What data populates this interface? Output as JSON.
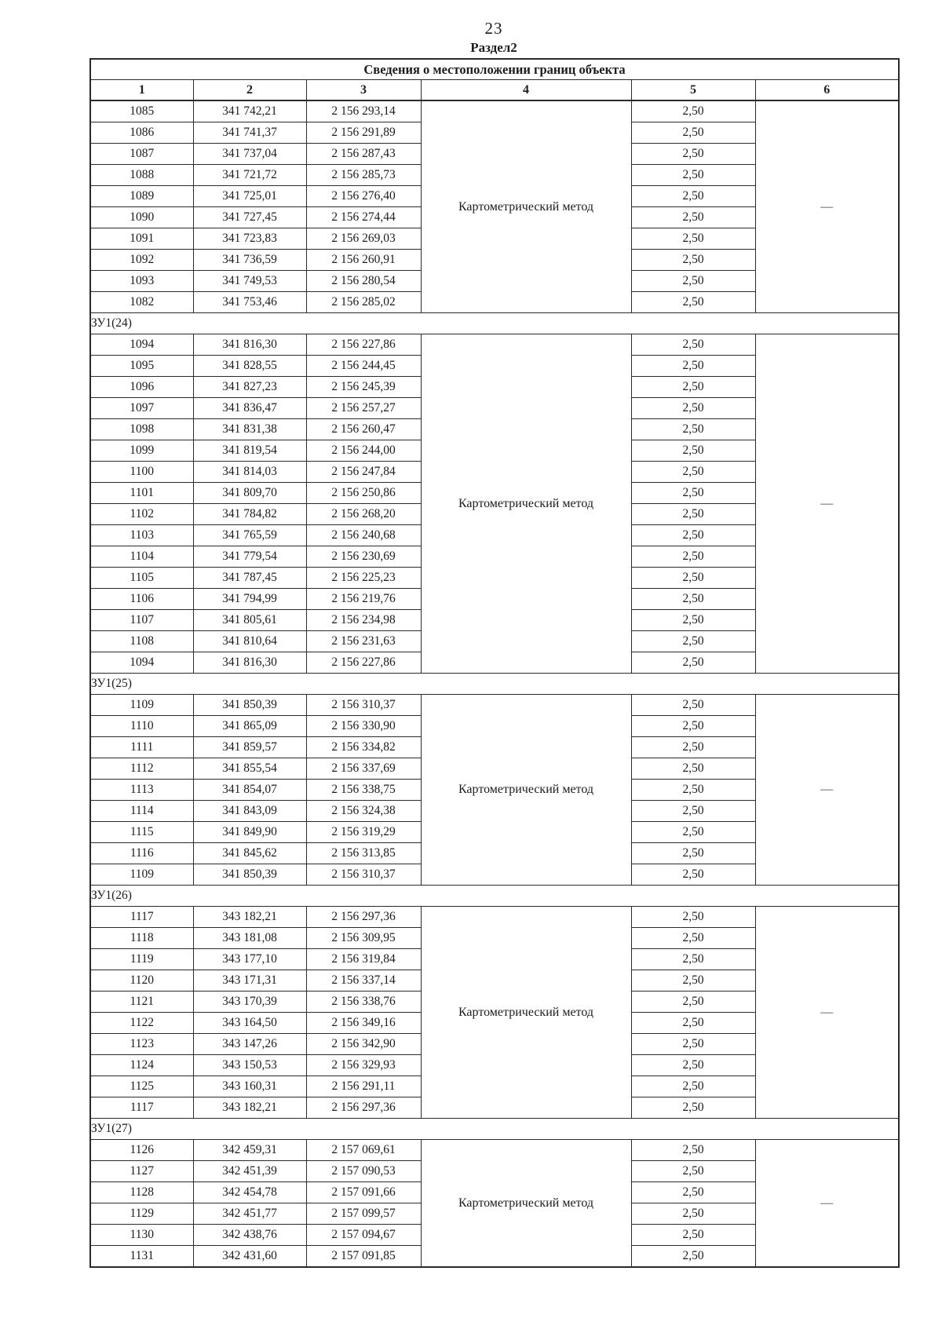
{
  "page": {
    "number": "23",
    "section_title": "Раздел2"
  },
  "table": {
    "title": "Сведения о местоположении границ объекта",
    "column_numbers": [
      "1",
      "2",
      "3",
      "4",
      "5",
      "6"
    ],
    "blocks": [
      {
        "section": null,
        "method": "Картометрический метод",
        "dash": "—",
        "rows": [
          [
            "1085",
            "341 742,21",
            "2 156 293,14",
            "2,50"
          ],
          [
            "1086",
            "341 741,37",
            "2 156 291,89",
            "2,50"
          ],
          [
            "1087",
            "341 737,04",
            "2 156 287,43",
            "2,50"
          ],
          [
            "1088",
            "341 721,72",
            "2 156 285,73",
            "2,50"
          ],
          [
            "1089",
            "341 725,01",
            "2 156 276,40",
            "2,50"
          ],
          [
            "1090",
            "341 727,45",
            "2 156 274,44",
            "2,50"
          ],
          [
            "1091",
            "341 723,83",
            "2 156 269,03",
            "2,50"
          ],
          [
            "1092",
            "341 736,59",
            "2 156 260,91",
            "2,50"
          ],
          [
            "1093",
            "341 749,53",
            "2 156 280,54",
            "2,50"
          ],
          [
            "1082",
            "341 753,46",
            "2 156 285,02",
            "2,50"
          ]
        ]
      },
      {
        "section": "ЗУ1(24)",
        "method": "Картометрический метод",
        "dash": "—",
        "rows": [
          [
            "1094",
            "341 816,30",
            "2 156 227,86",
            "2,50"
          ],
          [
            "1095",
            "341 828,55",
            "2 156 244,45",
            "2,50"
          ],
          [
            "1096",
            "341 827,23",
            "2 156 245,39",
            "2,50"
          ],
          [
            "1097",
            "341 836,47",
            "2 156 257,27",
            "2,50"
          ],
          [
            "1098",
            "341 831,38",
            "2 156 260,47",
            "2,50"
          ],
          [
            "1099",
            "341 819,54",
            "2 156 244,00",
            "2,50"
          ],
          [
            "1100",
            "341 814,03",
            "2 156 247,84",
            "2,50"
          ],
          [
            "1101",
            "341 809,70",
            "2 156 250,86",
            "2,50"
          ],
          [
            "1102",
            "341 784,82",
            "2 156 268,20",
            "2,50"
          ],
          [
            "1103",
            "341 765,59",
            "2 156 240,68",
            "2,50"
          ],
          [
            "1104",
            "341 779,54",
            "2 156 230,69",
            "2,50"
          ],
          [
            "1105",
            "341 787,45",
            "2 156 225,23",
            "2,50"
          ],
          [
            "1106",
            "341 794,99",
            "2 156 219,76",
            "2,50"
          ],
          [
            "1107",
            "341 805,61",
            "2 156 234,98",
            "2,50"
          ],
          [
            "1108",
            "341 810,64",
            "2 156 231,63",
            "2,50"
          ],
          [
            "1094",
            "341 816,30",
            "2 156 227,86",
            "2,50"
          ]
        ]
      },
      {
        "section": "ЗУ1(25)",
        "method": "Картометрический метод",
        "dash": "—",
        "rows": [
          [
            "1109",
            "341 850,39",
            "2 156 310,37",
            "2,50"
          ],
          [
            "1110",
            "341 865,09",
            "2 156 330,90",
            "2,50"
          ],
          [
            "1111",
            "341 859,57",
            "2 156 334,82",
            "2,50"
          ],
          [
            "1112",
            "341 855,54",
            "2 156 337,69",
            "2,50"
          ],
          [
            "1113",
            "341 854,07",
            "2 156 338,75",
            "2,50"
          ],
          [
            "1114",
            "341 843,09",
            "2 156 324,38",
            "2,50"
          ],
          [
            "1115",
            "341 849,90",
            "2 156 319,29",
            "2,50"
          ],
          [
            "1116",
            "341 845,62",
            "2 156 313,85",
            "2,50"
          ],
          [
            "1109",
            "341 850,39",
            "2 156 310,37",
            "2,50"
          ]
        ]
      },
      {
        "section": "ЗУ1(26)",
        "method": "Картометрический метод",
        "dash": "—",
        "rows": [
          [
            "1117",
            "343 182,21",
            "2 156 297,36",
            "2,50"
          ],
          [
            "1118",
            "343 181,08",
            "2 156 309,95",
            "2,50"
          ],
          [
            "1119",
            "343 177,10",
            "2 156 319,84",
            "2,50"
          ],
          [
            "1120",
            "343 171,31",
            "2 156 337,14",
            "2,50"
          ],
          [
            "1121",
            "343 170,39",
            "2 156 338,76",
            "2,50"
          ],
          [
            "1122",
            "343 164,50",
            "2 156 349,16",
            "2,50"
          ],
          [
            "1123",
            "343 147,26",
            "2 156 342,90",
            "2,50"
          ],
          [
            "1124",
            "343 150,53",
            "2 156 329,93",
            "2,50"
          ],
          [
            "1125",
            "343 160,31",
            "2 156 291,11",
            "2,50"
          ],
          [
            "1117",
            "343 182,21",
            "2 156 297,36",
            "2,50"
          ]
        ]
      },
      {
        "section": "ЗУ1(27)",
        "method": "Картометрический метод",
        "dash": "—",
        "rows": [
          [
            "1126",
            "342 459,31",
            "2 157 069,61",
            "2,50"
          ],
          [
            "1127",
            "342 451,39",
            "2 157 090,53",
            "2,50"
          ],
          [
            "1128",
            "342 454,78",
            "2 157 091,66",
            "2,50"
          ],
          [
            "1129",
            "342 451,77",
            "2 157 099,57",
            "2,50"
          ],
          [
            "1130",
            "342 438,76",
            "2 157 094,67",
            "2,50"
          ],
          [
            "1131",
            "342 431,60",
            "2 157 091,85",
            "2,50"
          ]
        ]
      }
    ]
  }
}
